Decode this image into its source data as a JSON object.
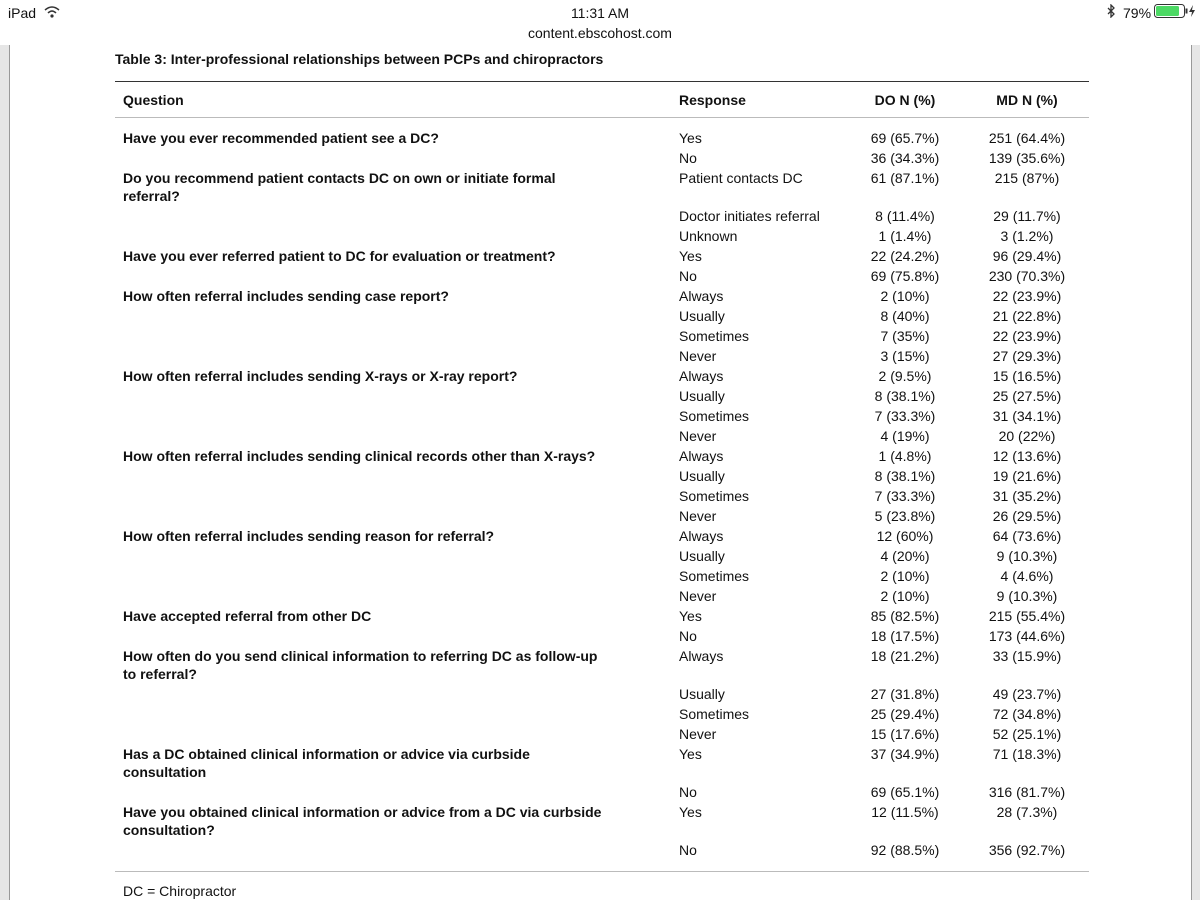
{
  "status_bar": {
    "device": "iPad",
    "time": "11:31 AM",
    "url": "content.ebscohost.com",
    "battery": "79%"
  },
  "table": {
    "title": "Table 3: Inter-professional relationships between PCPs and chiropractors",
    "headers": [
      "Question",
      "Response",
      "DO N (%)",
      "MD N (%)"
    ],
    "rows": [
      {
        "question": "Have you ever recommended patient see a DC?",
        "response": "Yes",
        "do": "69 (65.7%)",
        "md": "251 (64.4%)"
      },
      {
        "response": "No",
        "do": "36 (34.3%)",
        "md": "139 (35.6%)"
      },
      {
        "question": "Do you recommend patient contacts DC on own or initiate formal\nreferral?",
        "response": "Patient contacts DC",
        "do": "61 (87.1%)",
        "md": "215 (87%)"
      },
      {
        "response": "Doctor initiates referral",
        "do": "8 (11.4%)",
        "md": "29 (11.7%)"
      },
      {
        "response": "Unknown",
        "do": "1 (1.4%)",
        "md": "3 (1.2%)"
      },
      {
        "question": "Have you ever referred patient to DC for evaluation or treatment?",
        "response": "Yes",
        "do": "22 (24.2%)",
        "md": "96 (29.4%)"
      },
      {
        "response": "No",
        "do": "69 (75.8%)",
        "md": "230 (70.3%)"
      },
      {
        "question": "How often referral includes sending case report?",
        "response": "Always",
        "do": "2 (10%)",
        "md": "22 (23.9%)"
      },
      {
        "response": "Usually",
        "do": "8 (40%)",
        "md": "21 (22.8%)"
      },
      {
        "response": "Sometimes",
        "do": "7 (35%)",
        "md": "22 (23.9%)"
      },
      {
        "response": "Never",
        "do": "3 (15%)",
        "md": "27 (29.3%)"
      },
      {
        "question": "How often referral includes sending X-rays or X-ray report?",
        "response": "Always",
        "do": "2 (9.5%)",
        "md": "15 (16.5%)"
      },
      {
        "response": "Usually",
        "do": "8 (38.1%)",
        "md": "25 (27.5%)"
      },
      {
        "response": "Sometimes",
        "do": "7 (33.3%)",
        "md": "31 (34.1%)"
      },
      {
        "response": "Never",
        "do": "4 (19%)",
        "md": "20 (22%)"
      },
      {
        "question": "How often referral includes sending clinical records other than X-rays?",
        "response": "Always",
        "do": "1 (4.8%)",
        "md": "12 (13.6%)"
      },
      {
        "response": "Usually",
        "do": "8 (38.1%)",
        "md": "19 (21.6%)"
      },
      {
        "response": "Sometimes",
        "do": "7 (33.3%)",
        "md": "31 (35.2%)"
      },
      {
        "response": "Never",
        "do": "5 (23.8%)",
        "md": "26 (29.5%)"
      },
      {
        "question": "How often referral includes sending reason for referral?",
        "response": "Always",
        "do": "12 (60%)",
        "md": "64 (73.6%)"
      },
      {
        "response": "Usually",
        "do": "4 (20%)",
        "md": "9 (10.3%)"
      },
      {
        "response": "Sometimes",
        "do": "2 (10%)",
        "md": "4 (4.6%)"
      },
      {
        "response": "Never",
        "do": "2 (10%)",
        "md": "9 (10.3%)"
      },
      {
        "question": "Have accepted referral from other DC",
        "response": "Yes",
        "do": "85 (82.5%)",
        "md": "215 (55.4%)"
      },
      {
        "response": "No",
        "do": "18 (17.5%)",
        "md": "173 (44.6%)"
      },
      {
        "question": "How often do you send clinical information to referring DC as follow-up\nto referral?",
        "response": "Always",
        "do": "18 (21.2%)",
        "md": "33 (15.9%)"
      },
      {
        "response": "Usually",
        "do": "27 (31.8%)",
        "md": "49 (23.7%)"
      },
      {
        "response": "Sometimes",
        "do": "25 (29.4%)",
        "md": "72 (34.8%)"
      },
      {
        "response": "Never",
        "do": "15 (17.6%)",
        "md": "52 (25.1%)"
      },
      {
        "question": "Has a DC obtained clinical information or advice via curbside\nconsultation",
        "response": "Yes",
        "do": "37 (34.9%)",
        "md": "71 (18.3%)"
      },
      {
        "response": "No",
        "do": "69 (65.1%)",
        "md": "316 (81.7%)"
      },
      {
        "question": "Have you obtained clinical information or advice from a DC via curbside\nconsultation?",
        "response": "Yes",
        "do": "12 (11.5%)",
        "md": "28 (7.3%)"
      },
      {
        "response": "No",
        "do": "92 (88.5%)",
        "md": "356 (92.7%)"
      }
    ],
    "footnote": "DC = Chiropractor"
  }
}
